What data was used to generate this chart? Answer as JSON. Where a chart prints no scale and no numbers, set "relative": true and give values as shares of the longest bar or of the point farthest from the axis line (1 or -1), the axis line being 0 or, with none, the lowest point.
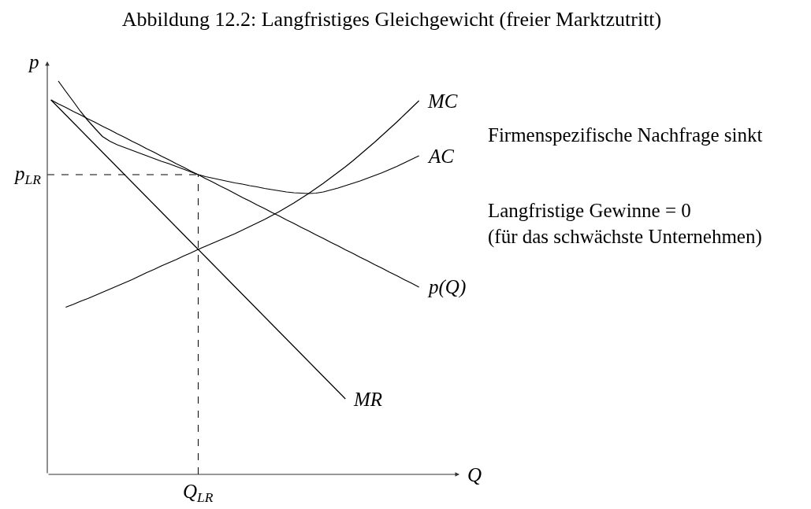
{
  "chart_data": {
    "type": "line",
    "title": "Abbildung 12.2: Langfristiges Gleichgewicht (freier Marktzutritt)",
    "xlabel": "Q",
    "ylabel": "p",
    "relative": true,
    "categories": [
      null,
      null,
      null,
      null,
      null,
      null,
      null,
      null,
      null,
      null,
      null,
      null,
      null,
      null,
      null,
      null,
      null,
      null,
      null,
      null,
      null,
      null,
      null,
      null,
      null,
      null,
      null,
      null,
      null,
      null,
      null,
      null,
      null,
      null,
      null,
      null,
      null,
      null,
      null,
      null,
      null,
      null,
      null,
      null,
      null,
      null,
      null,
      null,
      null,
      null,
      null,
      null,
      null,
      null,
      null,
      null
    ],
    "series": [
      {
        "name": "MC",
        "color": "#000000",
        "values": [
          null,
          null,
          0.425,
          0.432,
          0.44,
          0.447,
          0.455,
          0.463,
          0.471,
          0.479,
          0.487,
          0.495,
          0.504,
          0.513,
          0.521,
          0.53,
          0.538,
          0.546,
          0.555,
          0.563,
          0.572,
          0.58,
          0.588,
          0.596,
          0.604,
          0.612,
          0.621,
          0.63,
          0.639,
          0.648,
          0.658,
          0.668,
          0.679,
          0.69,
          0.702,
          0.714,
          0.727,
          0.74,
          0.754,
          0.768,
          0.782,
          0.797,
          0.813,
          0.829,
          0.845,
          0.862,
          0.879,
          0.896,
          0.914,
          0.932,
          0.95,
          null,
          null,
          null,
          null,
          null
        ]
      },
      {
        "name": "AC",
        "color": "#000000",
        "values": [
          null,
          1.0,
          0.974,
          0.949,
          0.923,
          0.9,
          0.879,
          0.859,
          0.847,
          0.838,
          0.831,
          0.824,
          0.817,
          0.81,
          0.803,
          0.796,
          0.79,
          0.783,
          0.776,
          0.769,
          0.762,
          0.757,
          0.753,
          0.749,
          0.745,
          0.741,
          0.738,
          0.734,
          0.731,
          0.727,
          0.724,
          0.721,
          0.718,
          0.716,
          0.715,
          0.714,
          0.715,
          0.718,
          0.723,
          0.728,
          0.734,
          0.74,
          0.746,
          0.753,
          0.76,
          0.767,
          0.775,
          0.783,
          0.792,
          0.801,
          0.81,
          null,
          null,
          null,
          null,
          null
        ]
      },
      {
        "name": "p(Q)",
        "color": "#000000",
        "values": [
          0.952,
          0.942,
          0.933,
          0.923,
          0.914,
          0.904,
          0.895,
          0.885,
          0.876,
          0.866,
          0.857,
          0.847,
          0.838,
          0.828,
          0.819,
          0.809,
          0.8,
          0.79,
          0.781,
          0.771,
          0.762,
          0.752,
          0.743,
          0.733,
          0.724,
          0.714,
          0.704,
          0.695,
          0.685,
          0.676,
          0.666,
          0.657,
          0.647,
          0.638,
          0.628,
          0.619,
          0.609,
          0.6,
          0.59,
          0.581,
          0.571,
          0.562,
          0.552,
          0.543,
          0.533,
          0.524,
          0.514,
          0.505,
          0.495,
          0.486,
          0.476,
          null,
          null,
          null,
          null,
          null
        ]
      },
      {
        "name": "MR",
        "color": "#000000",
        "values": [
          0.952,
          0.933,
          0.914,
          0.895,
          0.876,
          0.857,
          0.838,
          0.819,
          0.8,
          0.781,
          0.762,
          0.743,
          0.724,
          0.705,
          0.686,
          0.667,
          0.648,
          0.629,
          0.61,
          0.591,
          0.572,
          0.553,
          0.534,
          0.515,
          0.496,
          0.477,
          0.458,
          0.439,
          0.42,
          0.401,
          0.382,
          0.363,
          0.344,
          0.325,
          0.306,
          0.287,
          0.268,
          0.249,
          0.23,
          0.211,
          0.192,
          null,
          null,
          null,
          null,
          null,
          null,
          null,
          null,
          null,
          null,
          null,
          null,
          null,
          null,
          null
        ]
      }
    ],
    "ref_lines": [
      {
        "axis": "y",
        "value": 0.762,
        "label": "p$_{LR}$",
        "line_style": "dashed"
      }
    ],
    "annotations": [
      "Q$_{LR}$",
      "Firmenspezifische Nachfrage sinkt",
      "Langfristige Gewinne = 0\n(für das schwächste Unternehmen)"
    ]
  }
}
